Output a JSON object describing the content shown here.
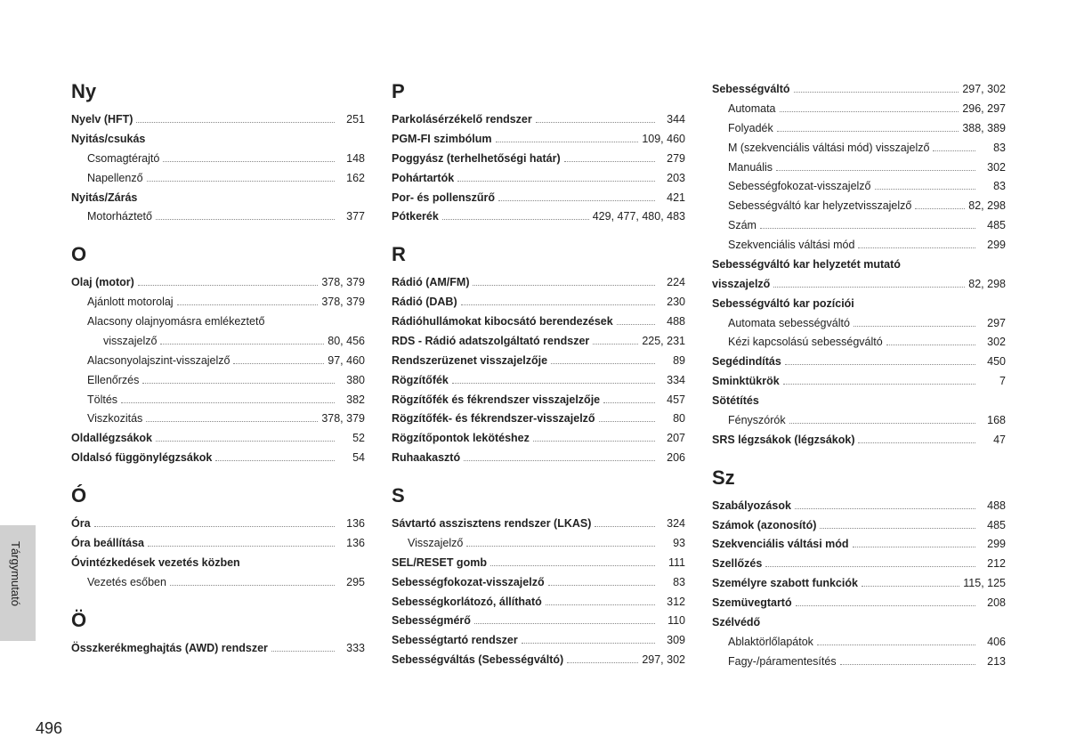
{
  "pageNumber": "496",
  "sideLabel": "Tárgymutató",
  "columns": [
    [
      {
        "type": "letter",
        "text": "Ny"
      },
      {
        "type": "entry",
        "label": "Nyelv (HFT)",
        "pages": "251",
        "bold": true
      },
      {
        "type": "entry",
        "label": "Nyitás/csukás",
        "pages": "",
        "bold": true
      },
      {
        "type": "entry",
        "label": "Csomagtérajtó",
        "pages": "148",
        "sub": 1
      },
      {
        "type": "entry",
        "label": "Napellenző",
        "pages": "162",
        "sub": 1
      },
      {
        "type": "entry",
        "label": "Nyitás/Zárás",
        "pages": "",
        "bold": true
      },
      {
        "type": "entry",
        "label": "Motorháztető",
        "pages": "377",
        "sub": 1
      },
      {
        "type": "letter",
        "text": "O"
      },
      {
        "type": "entry",
        "label": "Olaj (motor)",
        "pages": "378, 379",
        "bold": true
      },
      {
        "type": "entry",
        "label": "Ajánlott motorolaj",
        "pages": "378, 379",
        "sub": 1
      },
      {
        "type": "entry",
        "label": "Alacsony olajnyomásra emlékeztető",
        "pages": "",
        "sub": 1
      },
      {
        "type": "entry",
        "label": "visszajelző",
        "pages": "80, 456",
        "sub": 2
      },
      {
        "type": "entry",
        "label": "Alacsonyolajszint-visszajelző",
        "pages": "97, 460",
        "sub": 1
      },
      {
        "type": "entry",
        "label": "Ellenőrzés",
        "pages": "380",
        "sub": 1
      },
      {
        "type": "entry",
        "label": "Töltés",
        "pages": "382",
        "sub": 1
      },
      {
        "type": "entry",
        "label": "Viszkozitás",
        "pages": "378, 379",
        "sub": 1
      },
      {
        "type": "entry",
        "label": "Oldallégzsákok",
        "pages": "52",
        "bold": true
      },
      {
        "type": "entry",
        "label": "Oldalsó függönylégzsákok",
        "pages": "54",
        "bold": true
      },
      {
        "type": "letter",
        "text": "Ó"
      },
      {
        "type": "entry",
        "label": "Óra",
        "pages": "136",
        "bold": true
      },
      {
        "type": "entry",
        "label": "Óra beállítása",
        "pages": "136",
        "bold": true
      },
      {
        "type": "entry",
        "label": "Óvintézkedések vezetés közben",
        "pages": "",
        "bold": true
      },
      {
        "type": "entry",
        "label": "Vezetés esőben",
        "pages": "295",
        "sub": 1
      },
      {
        "type": "letter",
        "text": "Ö"
      },
      {
        "type": "entry",
        "label": "Összkerékmeghajtás (AWD) rendszer",
        "pages": "333",
        "bold": true
      }
    ],
    [
      {
        "type": "letter",
        "text": "P"
      },
      {
        "type": "entry",
        "label": "Parkolásérzékelő rendszer",
        "pages": "344",
        "bold": true
      },
      {
        "type": "entry",
        "label": "PGM-FI szimbólum",
        "pages": "109, 460",
        "bold": true
      },
      {
        "type": "entry",
        "label": "Poggyász (terhelhetőségi határ)",
        "pages": "279",
        "bold": true
      },
      {
        "type": "entry",
        "label": "Pohártartók",
        "pages": "203",
        "bold": true
      },
      {
        "type": "entry",
        "label": "Por- és pollenszűrő",
        "pages": "421",
        "bold": true
      },
      {
        "type": "entry",
        "label": "Pótkerék",
        "pages": "429, 477, 480, 483",
        "bold": true
      },
      {
        "type": "letter",
        "text": "R"
      },
      {
        "type": "entry",
        "label": "Rádió (AM/FM)",
        "pages": "224",
        "bold": true
      },
      {
        "type": "entry",
        "label": "Rádió (DAB)",
        "pages": "230",
        "bold": true
      },
      {
        "type": "entry",
        "label": "Rádióhullámokat kibocsátó berendezések",
        "pages": "488",
        "bold": true
      },
      {
        "type": "entry",
        "label": "RDS - Rádió adatszolgáltató rendszer",
        "pages": "225, 231",
        "bold": true
      },
      {
        "type": "entry",
        "label": "Rendszerüzenet visszajelzője",
        "pages": "89",
        "bold": true
      },
      {
        "type": "entry",
        "label": "Rögzítőfék",
        "pages": "334",
        "bold": true
      },
      {
        "type": "entry",
        "label": "Rögzítőfék és fékrendszer visszajelzője",
        "pages": "457",
        "bold": true
      },
      {
        "type": "entry",
        "label": "Rögzítőfék- és fékrendszer-visszajelző",
        "pages": "80",
        "bold": true
      },
      {
        "type": "entry",
        "label": "Rögzítőpontok lekötéshez",
        "pages": "207",
        "bold": true
      },
      {
        "type": "entry",
        "label": "Ruhaakasztó",
        "pages": "206",
        "bold": true
      },
      {
        "type": "letter",
        "text": "S"
      },
      {
        "type": "entry",
        "label": "Sávtartó asszisztens rendszer (LKAS)",
        "pages": "324",
        "bold": true
      },
      {
        "type": "entry",
        "label": "Visszajelző",
        "pages": "93",
        "sub": 1
      },
      {
        "type": "entry",
        "label": "SEL/RESET gomb",
        "pages": "111",
        "bold": true
      },
      {
        "type": "entry",
        "label": "Sebességfokozat-visszajelző",
        "pages": "83",
        "bold": true
      },
      {
        "type": "entry",
        "label": "Sebességkorlátozó, állítható",
        "pages": "312",
        "bold": true
      },
      {
        "type": "entry",
        "label": "Sebességmérő",
        "pages": "110",
        "bold": true
      },
      {
        "type": "entry",
        "label": "Sebességtartó rendszer",
        "pages": "309",
        "bold": true
      },
      {
        "type": "entry",
        "label": "Sebességváltás (Sebességváltó)",
        "pages": "297, 302",
        "bold": true
      }
    ],
    [
      {
        "type": "entry",
        "label": "Sebességváltó",
        "pages": "297, 302",
        "bold": true
      },
      {
        "type": "entry",
        "label": "Automata",
        "pages": "296, 297",
        "sub": 1
      },
      {
        "type": "entry",
        "label": "Folyadék",
        "pages": "388, 389",
        "sub": 1
      },
      {
        "type": "entry",
        "label": "M (szekvenciális váltási mód) visszajelző",
        "pages": "83",
        "sub": 1
      },
      {
        "type": "entry",
        "label": "Manuális",
        "pages": "302",
        "sub": 1
      },
      {
        "type": "entry",
        "label": "Sebességfokozat-visszajelző",
        "pages": "83",
        "sub": 1
      },
      {
        "type": "entry",
        "label": "Sebességváltó kar helyzetvisszajelző",
        "pages": "82, 298",
        "sub": 1
      },
      {
        "type": "entry",
        "label": "Szám",
        "pages": "485",
        "sub": 1
      },
      {
        "type": "entry",
        "label": "Szekvenciális váltási mód",
        "pages": "299",
        "sub": 1
      },
      {
        "type": "entry",
        "label": "Sebességváltó kar helyzetét mutató",
        "pages": "",
        "bold": true
      },
      {
        "type": "entry",
        "label": "visszajelző",
        "pages": "82, 298",
        "bold": true,
        "sub": 0,
        "continue": true
      },
      {
        "type": "entry",
        "label": "Sebességváltó kar pozíciói",
        "pages": "",
        "bold": true
      },
      {
        "type": "entry",
        "label": "Automata sebességváltó",
        "pages": "297",
        "sub": 1
      },
      {
        "type": "entry",
        "label": "Kézi kapcsolású sebességváltó",
        "pages": "302",
        "sub": 1
      },
      {
        "type": "entry",
        "label": "Segédindítás",
        "pages": "450",
        "bold": true
      },
      {
        "type": "entry",
        "label": "Sminktükrök",
        "pages": "7",
        "bold": true
      },
      {
        "type": "entry",
        "label": "Sötétítés",
        "pages": "",
        "bold": true
      },
      {
        "type": "entry",
        "label": "Fényszórók",
        "pages": "168",
        "sub": 1
      },
      {
        "type": "entry",
        "label": "SRS légzsákok (légzsákok)",
        "pages": "47",
        "bold": true
      },
      {
        "type": "letter",
        "text": "Sz"
      },
      {
        "type": "entry",
        "label": "Szabályozások",
        "pages": "488",
        "bold": true
      },
      {
        "type": "entry",
        "label": "Számok (azonosító)",
        "pages": "485",
        "bold": true
      },
      {
        "type": "entry",
        "label": "Szekvenciális váltási mód",
        "pages": "299",
        "bold": true
      },
      {
        "type": "entry",
        "label": "Szellőzés",
        "pages": "212",
        "bold": true
      },
      {
        "type": "entry",
        "label": "Személyre szabott funkciók",
        "pages": "115, 125",
        "bold": true
      },
      {
        "type": "entry",
        "label": "Szemüvegtartó",
        "pages": "208",
        "bold": true
      },
      {
        "type": "entry",
        "label": "Szélvédő",
        "pages": "",
        "bold": true
      },
      {
        "type": "entry",
        "label": "Ablaktörlőlapátok",
        "pages": "406",
        "sub": 1
      },
      {
        "type": "entry",
        "label": "Fagy-/páramentesítés",
        "pages": "213",
        "sub": 1
      }
    ]
  ]
}
